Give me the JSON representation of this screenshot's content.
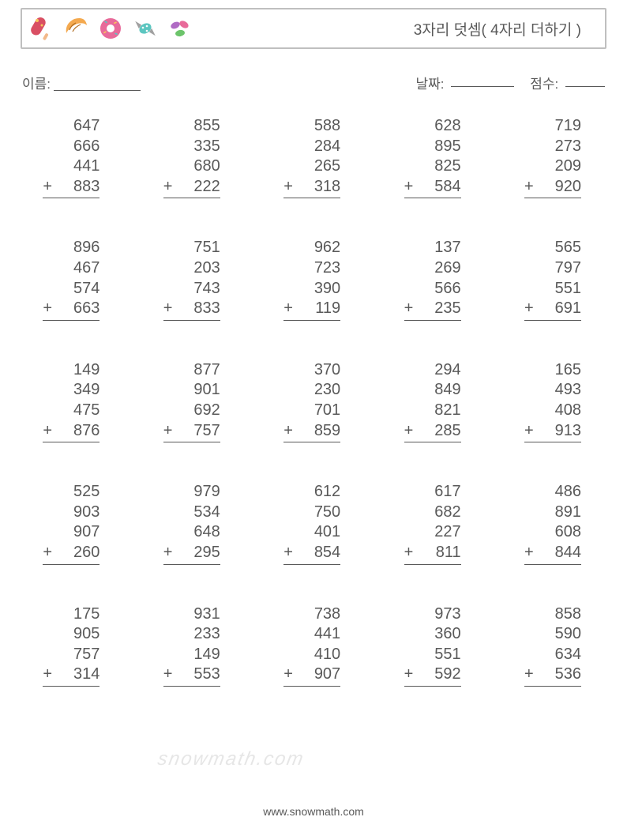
{
  "title": "3자리 덧셈( 4자리 더하기 )",
  "meta": {
    "name_label": "이름:",
    "date_label": "날짜:",
    "score_label": "점수:"
  },
  "colors": {
    "text": "#595959",
    "border": "#bfbfbf",
    "background": "#ffffff",
    "watermark": "#e6e6e6",
    "popsicle_stick": "#f2b98a",
    "popsicle_body": "#d94f63",
    "popsicle_highlight": "#f9c65b",
    "croissant": "#f4a94f",
    "croissant_line": "#b06c1e",
    "donut_ring": "#e86a9a",
    "donut_sprinkle1": "#5cc6c0",
    "donut_sprinkle2": "#f9c65b",
    "candy_body": "#5cc6c0",
    "candy_wrap": "#a0a0a0",
    "candy_dot": "#ffffff",
    "beans_purple": "#b06bc4",
    "beans_pink": "#e86a9a",
    "beans_green": "#6cc46b"
  },
  "typography": {
    "title_fontsize": 19,
    "meta_fontsize": 17,
    "number_fontsize": 20,
    "footer_fontsize": 14,
    "watermark_fontsize": 24
  },
  "plus_sign": "+",
  "problems": [
    [
      [
        "647",
        "666",
        "441",
        "883"
      ],
      [
        "855",
        "335",
        "680",
        "222"
      ],
      [
        "588",
        "284",
        "265",
        "318"
      ],
      [
        "628",
        "895",
        "825",
        "584"
      ],
      [
        "719",
        "273",
        "209",
        "920"
      ]
    ],
    [
      [
        "896",
        "467",
        "574",
        "663"
      ],
      [
        "751",
        "203",
        "743",
        "833"
      ],
      [
        "962",
        "723",
        "390",
        "119"
      ],
      [
        "137",
        "269",
        "566",
        "235"
      ],
      [
        "565",
        "797",
        "551",
        "691"
      ]
    ],
    [
      [
        "149",
        "349",
        "475",
        "876"
      ],
      [
        "877",
        "901",
        "692",
        "757"
      ],
      [
        "370",
        "230",
        "701",
        "859"
      ],
      [
        "294",
        "849",
        "821",
        "285"
      ],
      [
        "165",
        "493",
        "408",
        "913"
      ]
    ],
    [
      [
        "525",
        "903",
        "907",
        "260"
      ],
      [
        "979",
        "534",
        "648",
        "295"
      ],
      [
        "612",
        "750",
        "401",
        "854"
      ],
      [
        "617",
        "682",
        "227",
        "811"
      ],
      [
        "486",
        "891",
        "608",
        "844"
      ]
    ],
    [
      [
        "175",
        "905",
        "757",
        "314"
      ],
      [
        "931",
        "233",
        "149",
        "553"
      ],
      [
        "738",
        "441",
        "410",
        "907"
      ],
      [
        "973",
        "360",
        "551",
        "592"
      ],
      [
        "858",
        "590",
        "634",
        "536"
      ]
    ]
  ],
  "watermark_text": "snowmath.com",
  "footer_text": "www.snowmath.com"
}
